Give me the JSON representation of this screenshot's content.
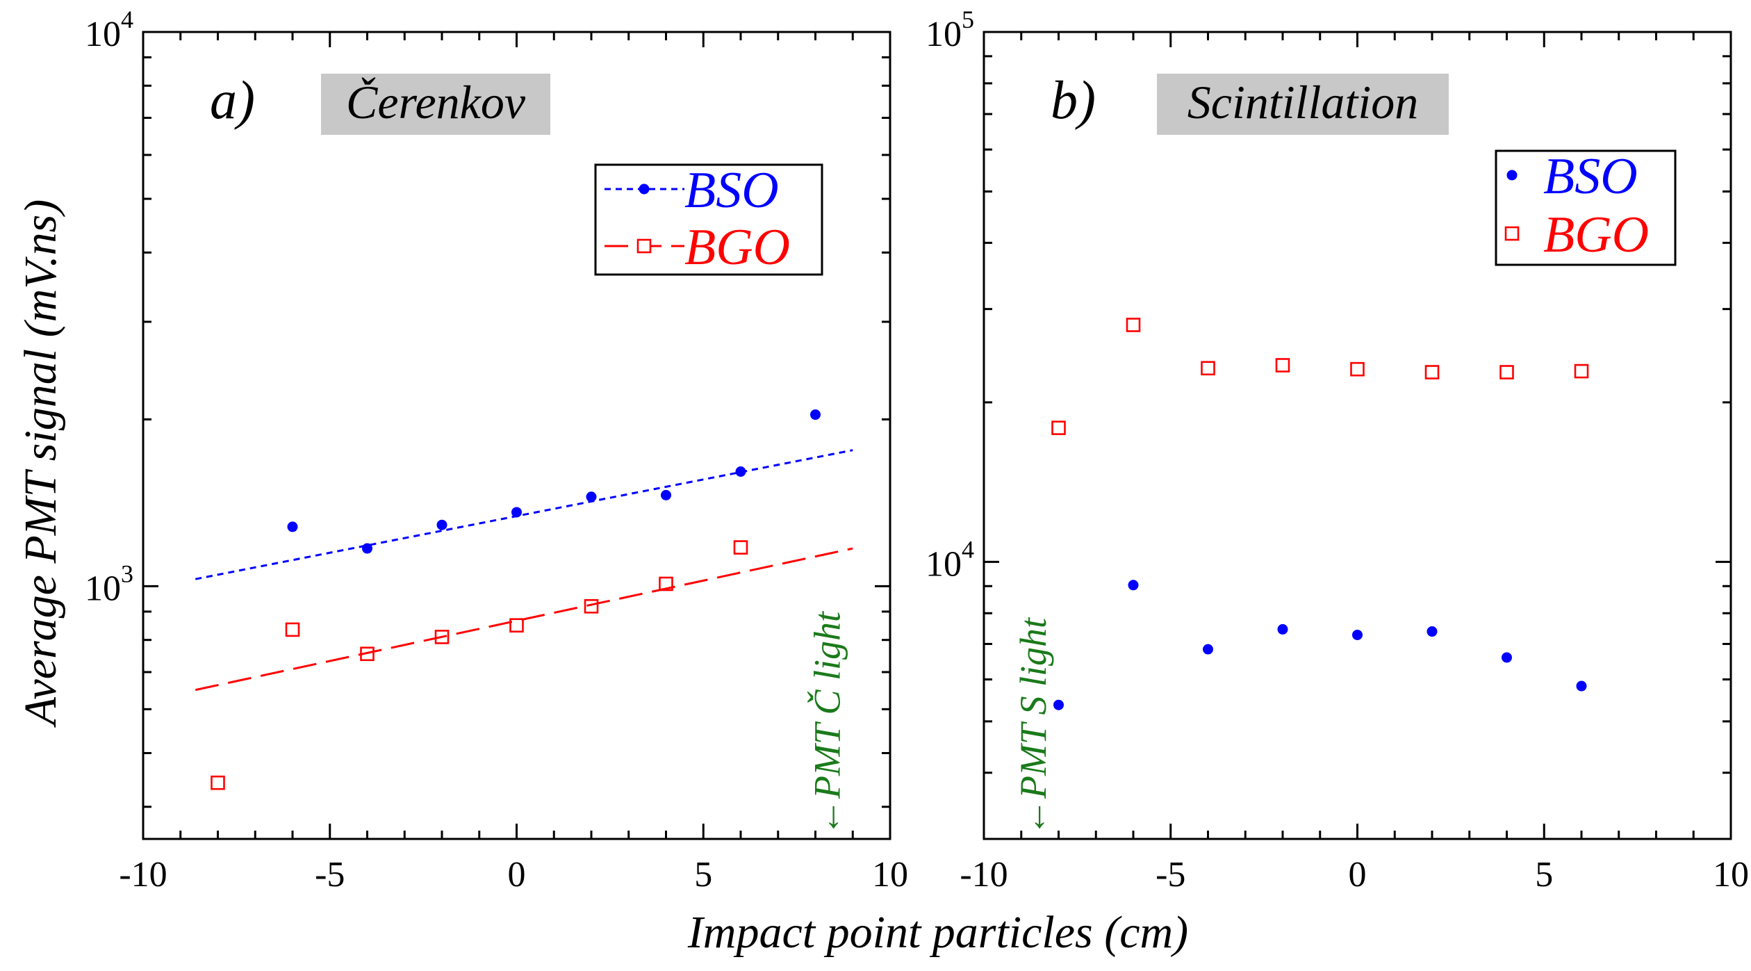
{
  "figure": {
    "y_axis_title": "Average PMT signal (mV.ns)",
    "x_axis_title": "Impact point particles (cm)"
  },
  "colors": {
    "bso": "#0000ff",
    "bgo": "#ff0000",
    "annotation": "#1a7a1a",
    "label_box": "#c8c8c8"
  },
  "chart_data": [
    {
      "type": "scatter",
      "panel_label": "a)",
      "title": "Čerenkov",
      "xlim": [
        -10,
        10
      ],
      "ylim": [
        350,
        10000
      ],
      "yscale": "log",
      "x_ticks": [
        "-10",
        "-5",
        "0",
        "5",
        "10"
      ],
      "y_ticks": [
        {
          "base": "10",
          "exp": "3"
        },
        {
          "base": "10",
          "exp": "4"
        }
      ],
      "legend_position": "top-right",
      "series": [
        {
          "name": "BSO",
          "color": "#0000ff",
          "marker": "filled-circle",
          "x": [
            -6,
            -4,
            -2,
            0,
            2,
            4,
            6,
            8
          ],
          "y": [
            1280,
            1170,
            1290,
            1360,
            1450,
            1460,
            1610,
            2040
          ],
          "fit": {
            "style": "dotted",
            "x": [
              -8.6,
              9.0
            ],
            "y": [
              1030,
              1760
            ]
          }
        },
        {
          "name": "BGO",
          "color": "#ff0000",
          "marker": "open-square",
          "x": [
            -8,
            -6,
            -4,
            -2,
            0,
            2,
            4,
            6
          ],
          "y": [
            442,
            835,
            755,
            810,
            850,
            920,
            1010,
            1175
          ],
          "fit": {
            "style": "dashed",
            "x": [
              -8.6,
              9.0
            ],
            "y": [
              650,
              1170
            ]
          }
        }
      ],
      "annotation": {
        "text": "←PMT Č light",
        "x": 8.3
      }
    },
    {
      "type": "scatter",
      "panel_label": "b)",
      "title": "Scintillation",
      "xlim": [
        -10,
        10
      ],
      "ylim": [
        3000,
        100000
      ],
      "yscale": "log",
      "x_ticks": [
        "-10",
        "-5",
        "0",
        "5",
        "10"
      ],
      "y_ticks": [
        {
          "base": "10",
          "exp": "4"
        },
        {
          "base": "10",
          "exp": "5"
        }
      ],
      "legend_position": "top-right",
      "series": [
        {
          "name": "BSO",
          "color": "#0000ff",
          "marker": "filled-circle",
          "x": [
            -8,
            -6,
            -4,
            -2,
            0,
            2,
            4,
            6
          ],
          "y": [
            5370,
            9040,
            6840,
            7460,
            7280,
            7390,
            6600,
            5830
          ]
        },
        {
          "name": "BGO",
          "color": "#ff0000",
          "marker": "open-square",
          "x": [
            -8,
            -6,
            -4,
            -2,
            0,
            2,
            4,
            6
          ],
          "y": [
            17900,
            28000,
            23200,
            23500,
            23100,
            22800,
            22800,
            22900
          ]
        }
      ],
      "annotation": {
        "text": "←PMT S light",
        "x": -8.7
      }
    }
  ]
}
